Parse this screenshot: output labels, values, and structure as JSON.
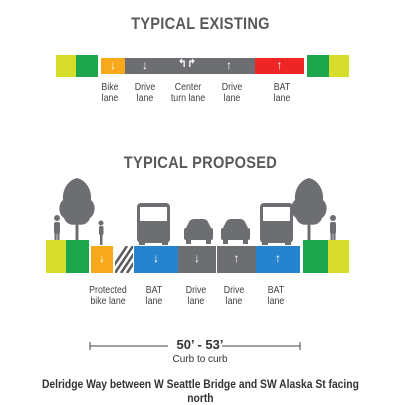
{
  "existing": {
    "title": "TYPICAL EXISTING",
    "labels": {
      "bike": "Bike\nlane",
      "drive1": "Drive\nlane",
      "center": "Center\nturn lane",
      "drive2": "Drive\nlane",
      "bat": "BAT\nlane"
    }
  },
  "proposed": {
    "title": "TYPICAL PROPOSED",
    "labels": {
      "protected_bike": "Protected\nbike lane",
      "bat1": "BAT\nlane",
      "drive1": "Drive\nlane",
      "drive2": "Drive\nlane",
      "bat2": "BAT\nlane"
    }
  },
  "dimension": {
    "value": "50’ - 53’",
    "label": "Curb to curb"
  },
  "caption": "Delridge Way between W Seattle Bridge and SW Alaska St facing north",
  "colors": {
    "sidewalk": "#d7dd2b",
    "planting": "#1da64b",
    "bike": "#f7a81b",
    "drive": "#6d6e71",
    "bat": "#ed2524",
    "bat_proposed": "#2684cf",
    "buffer": "#58595b",
    "silhouette": "#6d6e71"
  }
}
